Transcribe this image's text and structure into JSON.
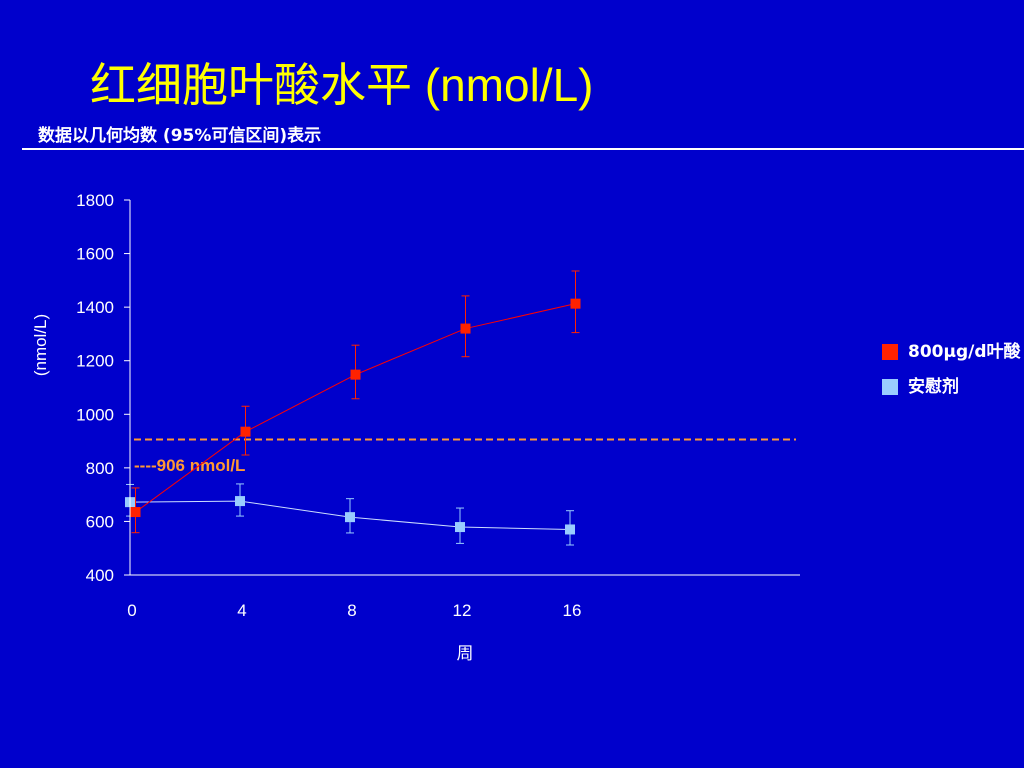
{
  "slide": {
    "title_cn": "红细胞叶酸水平",
    "title_unit": " (nmol/L)",
    "subtitle": "数据以几何均数 (95%可信区间)表示"
  },
  "chart_data": {
    "type": "line",
    "xlabel": "周",
    "ylabel": "(nmol/L)",
    "xlim": [
      0,
      24
    ],
    "ylim": [
      400,
      1800
    ],
    "xticks": [
      0,
      4,
      8,
      12,
      16
    ],
    "yticks": [
      400,
      600,
      800,
      1000,
      1200,
      1400,
      1600,
      1800
    ],
    "series": [
      {
        "name": "800μg/d叶酸",
        "color": "#ff2200",
        "line_color": "#ff0000",
        "x": [
          0.2,
          4.2,
          8.2,
          12.2,
          16.2
        ],
        "values": [
          635,
          935,
          1148,
          1320,
          1413
        ],
        "ci_low": [
          558,
          848,
          1058,
          1215,
          1305
        ],
        "ci_high": [
          725,
          1030,
          1258,
          1442,
          1535
        ]
      },
      {
        "name": "安慰剂",
        "color": "#99ccff",
        "line_color": "#ccddff",
        "x": [
          0,
          4,
          8,
          12,
          16
        ],
        "values": [
          672,
          676,
          616,
          579,
          570
        ],
        "ci_low": [
          620,
          620,
          557,
          518,
          512
        ],
        "ci_high": [
          738,
          740,
          685,
          650,
          640
        ]
      }
    ],
    "reference_line": {
      "value": 906,
      "label": "----906 nmol/L",
      "color": "#ff9933"
    },
    "legend_position": "right"
  }
}
